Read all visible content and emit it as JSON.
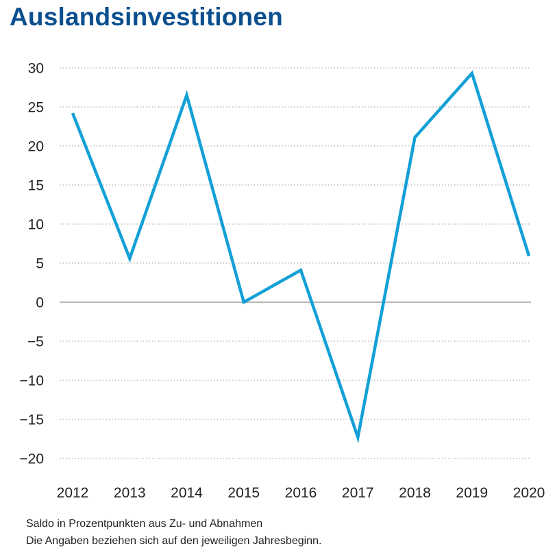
{
  "chart_data": {
    "type": "line",
    "title": "Auslandsinvestitionen",
    "x": [
      "2012",
      "2013",
      "2014",
      "2015",
      "2016",
      "2017",
      "2018",
      "2019",
      "2020"
    ],
    "series": [
      {
        "values": [
          24.2,
          5.6,
          26.5,
          0.0,
          4.1,
          -17.3,
          21.1,
          29.3,
          5.9
        ]
      }
    ],
    "yticks": [
      "30",
      "25",
      "20",
      "15",
      "10",
      "5",
      "0",
      "-5",
      "-10",
      "-15",
      "-20"
    ],
    "ylim": [
      -20,
      30
    ],
    "grid": true,
    "line_color": "#12a0d7",
    "footnotes": [
      "Saldo in Prozentpunkten aus Zu- und Abnahmen",
      "Die Angaben beziehen sich auf den jeweiligen Jahresbeginn."
    ]
  }
}
